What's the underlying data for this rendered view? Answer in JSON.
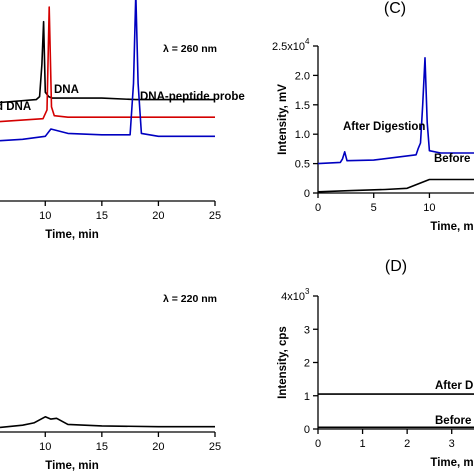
{
  "chart_data": [
    {
      "panel_label": "",
      "type": "line",
      "annotation": "λ = 260 nm",
      "xlabel": "Time, min",
      "ylabel": "",
      "xlim": [
        6,
        25
      ],
      "xticks": [
        10,
        15,
        20,
        25
      ],
      "ylim": [
        0,
        1
      ],
      "yticks": [],
      "series": [
        {
          "label": "d DNA",
          "color": "#000000",
          "x": [
            6,
            9.2,
            9.5,
            9.7,
            9.85,
            10.0,
            10.3,
            10.6,
            12,
            15,
            18,
            21,
            25
          ],
          "y": [
            0.67,
            0.69,
            0.71,
            0.93,
            1.22,
            0.74,
            0.71,
            0.7,
            0.7,
            0.7,
            0.69,
            0.69,
            0.69
          ]
        },
        {
          "label": "DNA",
          "color": "#d40000",
          "x": [
            6,
            9.8,
            10.15,
            10.35,
            10.55,
            10.8,
            12,
            15,
            18,
            21,
            25
          ],
          "y": [
            0.54,
            0.56,
            0.62,
            1.32,
            0.64,
            0.58,
            0.57,
            0.57,
            0.57,
            0.57,
            0.57
          ]
        },
        {
          "label": "DNA-peptide probe",
          "color": "#0000c0",
          "x": [
            6,
            8,
            10,
            10.5,
            12,
            15,
            17.5,
            17.8,
            18.0,
            18.2,
            18.5,
            20,
            22,
            25
          ],
          "y": [
            0.41,
            0.42,
            0.44,
            0.49,
            0.46,
            0.45,
            0.45,
            0.8,
            1.41,
            0.8,
            0.46,
            0.44,
            0.44,
            0.44
          ]
        }
      ]
    },
    {
      "panel_label": "(C)",
      "type": "line",
      "xlabel": "Time, m",
      "ylabel": "Intensity, mV",
      "xlim": [
        0,
        14
      ],
      "xticks": [
        0,
        5,
        10
      ],
      "ylim": [
        0,
        25000
      ],
      "yticks": [
        "0",
        "0.5",
        "1.0",
        "1.5",
        "2.0",
        "2.5x10"
      ],
      "ytick_values": [
        0,
        5000,
        10000,
        15000,
        20000,
        25000
      ],
      "y_exponent": "4",
      "series": [
        {
          "label": "After Digestion",
          "color": "#0000c0",
          "x": [
            0,
            2,
            2.2,
            2.4,
            2.6,
            5,
            8.8,
            9.0,
            9.2,
            9.4,
            9.6,
            9.8,
            10.0,
            11,
            14
          ],
          "y": [
            5000,
            5200,
            5800,
            7000,
            5500,
            5600,
            6500,
            7600,
            8500,
            15000,
            23000,
            12000,
            7200,
            6800,
            6800
          ]
        },
        {
          "label": "Before",
          "color": "#000000",
          "x": [
            0,
            3,
            6,
            8,
            10,
            14
          ],
          "y": [
            200,
            400,
            600,
            800,
            2300,
            2300
          ]
        }
      ]
    },
    {
      "panel_label": "",
      "type": "line",
      "annotation": "λ = 220 nm",
      "xlabel": "Time, min",
      "ylabel": "",
      "xlim": [
        6,
        25
      ],
      "xticks": [
        10,
        15,
        20,
        25
      ],
      "ylim": [
        0,
        1
      ],
      "yticks": [],
      "series": [
        {
          "label": "",
          "color": "#000000",
          "x": [
            6,
            8,
            9,
            10,
            10.5,
            11,
            12,
            15,
            20,
            25
          ],
          "y": [
            0.03,
            0.045,
            0.06,
            0.1,
            0.085,
            0.09,
            0.05,
            0.04,
            0.035,
            0.035
          ]
        }
      ]
    },
    {
      "panel_label": "(D)",
      "type": "line",
      "xlabel": "Time, m",
      "ylabel": "Intensity, cps",
      "xlim": [
        0,
        3.5
      ],
      "xticks": [
        0,
        1,
        2,
        3
      ],
      "ylim": [
        0,
        4000
      ],
      "yticks": [
        "0",
        "1",
        "2",
        "3",
        "4x10"
      ],
      "ytick_values": [
        0,
        1000,
        2000,
        3000,
        4000
      ],
      "y_exponent": "3",
      "series": [
        {
          "label": "After Di",
          "color": "#000000",
          "x": [
            0,
            3.5
          ],
          "y": [
            1050,
            1050
          ]
        },
        {
          "label": "Before",
          "color": "#000000",
          "x": [
            0,
            3.5
          ],
          "y": [
            50,
            50
          ]
        }
      ]
    }
  ]
}
